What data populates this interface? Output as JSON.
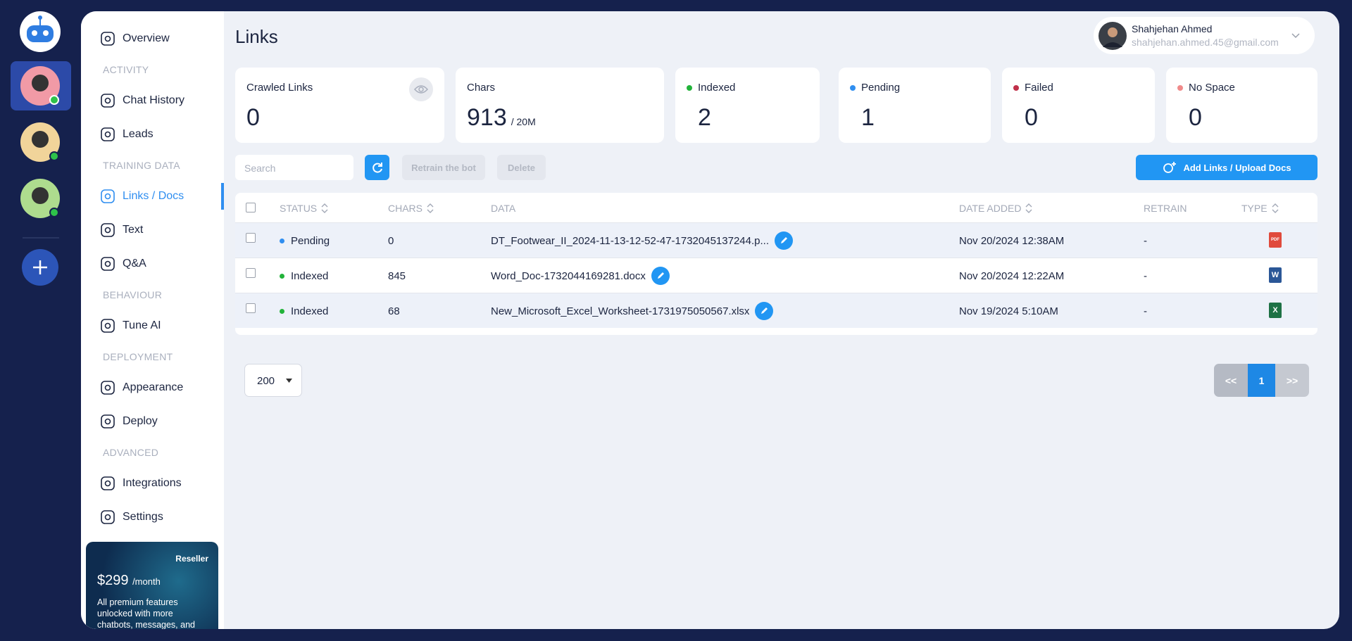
{
  "sidebar": {
    "items": [
      {
        "label": "Overview"
      },
      {
        "section": "ACTIVITY"
      },
      {
        "label": "Chat History"
      },
      {
        "label": "Leads"
      },
      {
        "section": "TRAINING DATA"
      },
      {
        "label": "Links / Docs",
        "active": true
      },
      {
        "label": "Text"
      },
      {
        "label": "Q&A"
      },
      {
        "section": "BEHAVIOUR"
      },
      {
        "label": "Tune AI"
      },
      {
        "section": "DEPLOYMENT"
      },
      {
        "label": "Appearance"
      },
      {
        "label": "Deploy"
      },
      {
        "section": "ADVANCED"
      },
      {
        "label": "Integrations"
      },
      {
        "label": "Settings"
      }
    ],
    "promo": {
      "badge": "Reseller",
      "price": "$299",
      "period": "/month",
      "text": "All premium features unlocked with more chatbots, messages, and"
    }
  },
  "header": {
    "title": "Links",
    "user": {
      "name": "Shahjehan Ahmed",
      "email": "shahjehan.ahmed.45@gmail.com"
    }
  },
  "stats": [
    {
      "label": "Crawled Links",
      "value": 0
    },
    {
      "label": "Chars",
      "value": 913,
      "suffix": "/ 20M"
    },
    {
      "label": "Indexed",
      "value": 2,
      "color": "#22b33a"
    },
    {
      "label": "Pending",
      "value": 1,
      "color": "#2f8ef0"
    },
    {
      "label": "Failed",
      "value": 0,
      "color": "#c0304a"
    },
    {
      "label": "No Space",
      "value": 0,
      "color": "#f08a8a"
    }
  ],
  "toolbar": {
    "search": "Search",
    "retrain": "Retrain the bot",
    "delete": "Delete",
    "add": "Add Links / Upload Docs"
  },
  "table": {
    "columns": [
      {
        "label": "STATUS",
        "sortable": true
      },
      {
        "label": "CHARS",
        "sortable": true
      },
      {
        "label": "DATA",
        "sortable": false
      },
      {
        "label": "DATE ADDED",
        "sortable": true
      },
      {
        "label": "RETRAIN",
        "sortable": false
      },
      {
        "label": "TYPE",
        "sortable": true
      }
    ],
    "rows": [
      {
        "status": "Pending",
        "chars": 0,
        "data": "DT_Footwear_II_2024-11-13-12-52-47-1732045137244.p...",
        "date": "Nov 20/2024 12:38AM",
        "retrain": "-",
        "type": "PDF",
        "type_color": "#e04a3c"
      },
      {
        "status": "Indexed",
        "chars": 845,
        "data": "Word_Doc-1732044169281.docx",
        "date": "Nov 20/2024 12:22AM",
        "retrain": "-",
        "type": "W",
        "type_color": "#2b5797"
      },
      {
        "status": "Indexed",
        "chars": 68,
        "data": "New_Microsoft_Excel_Worksheet-1731975050567.xlsx",
        "date": "Nov 19/2024 5:10AM",
        "retrain": "-",
        "type": "X",
        "type_color": "#1e7145"
      }
    ]
  },
  "pagination": {
    "page_size": "200",
    "prev": "<<",
    "current": "1",
    "next": ">>"
  }
}
